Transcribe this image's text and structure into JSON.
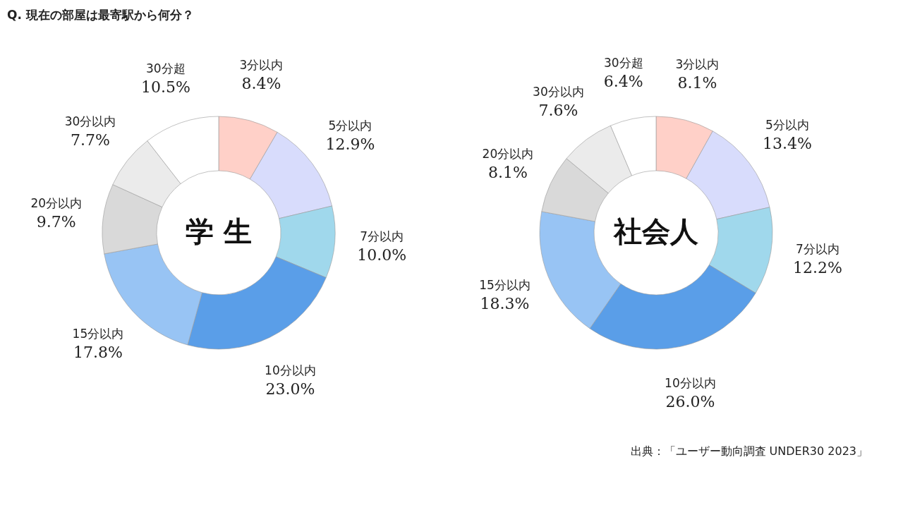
{
  "chart_data": [
    {
      "type": "donut",
      "title": "学 生",
      "annotations": [
        "Q. 現在の部屋は最寄駅から何分？"
      ],
      "legend": false,
      "categories": [
        "3分以内",
        "5分以内",
        "7分以内",
        "10分以内",
        "15分以内",
        "20分以内",
        "30分以内",
        "30分超"
      ],
      "values": [
        8.4,
        12.9,
        10.0,
        23.0,
        17.8,
        9.7,
        7.7,
        10.5
      ],
      "value_labels": [
        "8.4%",
        "12.9%",
        "10.0%",
        "23.0%",
        "17.8%",
        "9.7%",
        "7.7%",
        "10.5%"
      ],
      "colors": [
        "#ffd0c8",
        "#d8dcfc",
        "#a0d8ec",
        "#5a9ee8",
        "#98c4f4",
        "#d9d9d9",
        "#ebebeb",
        "#ffffff"
      ]
    },
    {
      "type": "donut",
      "title": "社会人",
      "annotations": [
        "出典：「ユーザー動向調査 UNDER30 2023」"
      ],
      "legend": false,
      "categories": [
        "3分以内",
        "5分以内",
        "7分以内",
        "10分以内",
        "15分以内",
        "20分以内",
        "30分以内",
        "30分超"
      ],
      "values": [
        8.1,
        13.4,
        12.2,
        26.0,
        18.3,
        8.1,
        7.6,
        6.4
      ],
      "value_labels": [
        "8.1%",
        "13.4%",
        "12.2%",
        "26.0%",
        "18.3%",
        "8.1%",
        "7.6%",
        "6.4%"
      ],
      "colors": [
        "#ffd0c8",
        "#d8dcfc",
        "#a0d8ec",
        "#5a9ee8",
        "#98c4f4",
        "#d9d9d9",
        "#ebebeb",
        "#ffffff"
      ]
    }
  ]
}
